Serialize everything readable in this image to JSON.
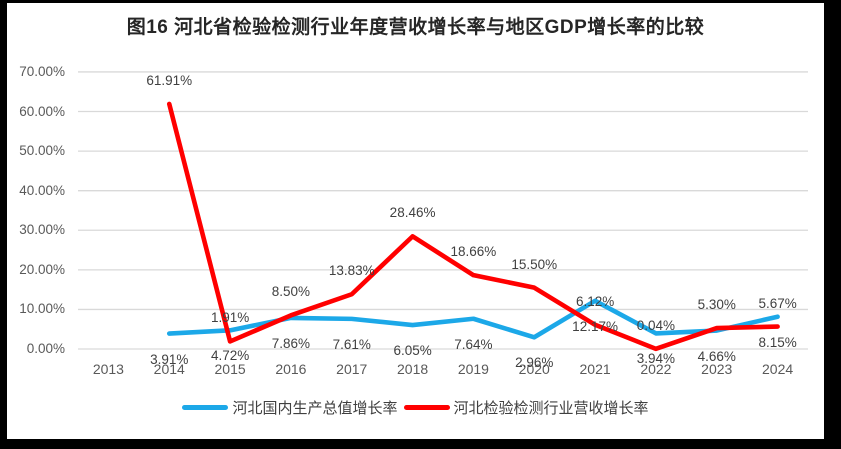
{
  "window": {
    "frame_bg": "#000000",
    "canvas_bg": "#FFFFFF"
  },
  "chart_data": {
    "type": "line",
    "title": "图16 河北省检验检测行业年度营收增长率与地区GDP增长率的比较",
    "categories": [
      "2013",
      "2014",
      "2015",
      "2016",
      "2017",
      "2018",
      "2019",
      "2020",
      "2021",
      "2022",
      "2023",
      "2024"
    ],
    "series": [
      {
        "name": "河北国内生产总值增长率",
        "color": "#1CA8E8",
        "label_position": "below",
        "values": [
          null,
          3.91,
          4.72,
          7.86,
          7.61,
          6.05,
          7.64,
          2.96,
          12.17,
          3.94,
          4.66,
          8.15
        ]
      },
      {
        "name": "河北检验检测行业营收增长率",
        "color": "#FF0000",
        "label_position": "above",
        "values": [
          null,
          61.91,
          1.91,
          8.5,
          13.83,
          28.46,
          18.66,
          15.5,
          6.12,
          0.04,
          5.3,
          5.67
        ]
      }
    ],
    "y_axis": {
      "min": 0,
      "max": 70,
      "step": 10,
      "tick_labels": [
        "0.00%",
        "10.00%",
        "20.00%",
        "30.00%",
        "40.00%",
        "50.00%",
        "60.00%",
        "70.00%"
      ]
    },
    "label_format": "0.00%",
    "grid": true,
    "legend_position": "bottom",
    "styles": {
      "grid_color": "#D9D9D9",
      "axis_text_color": "#595959",
      "data_label_color": "#404040",
      "title_color": "#262626"
    }
  }
}
